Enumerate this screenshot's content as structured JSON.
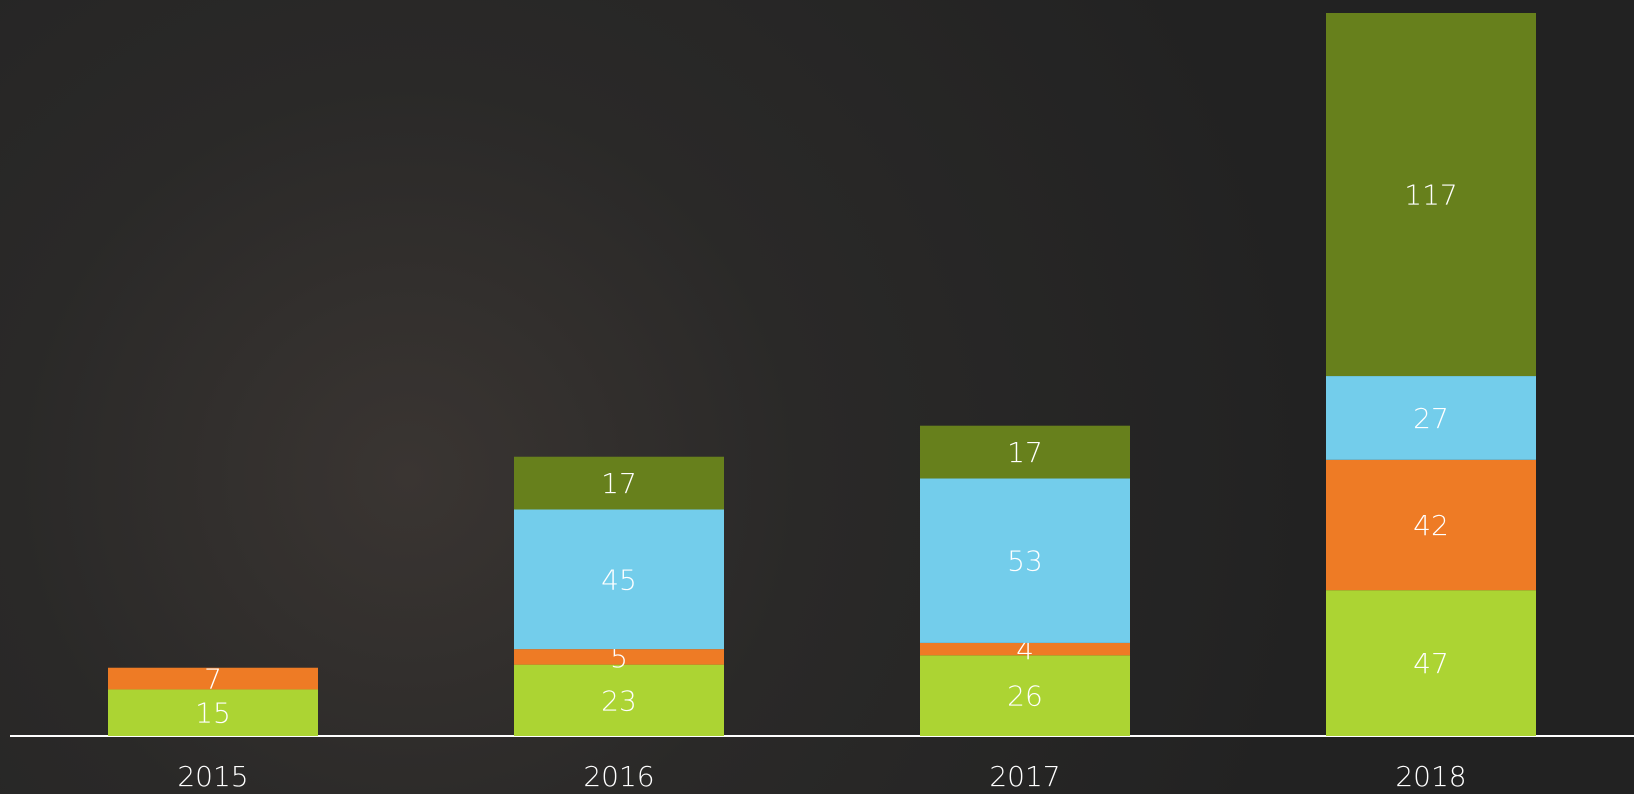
{
  "chart_data": {
    "type": "stacked_bar",
    "categories": [
      "2015",
      "2016",
      "2017",
      "2018"
    ],
    "series": [
      {
        "color": "#acd433",
        "values": [
          15,
          23,
          26,
          47
        ]
      },
      {
        "color": "#ee7b25",
        "values": [
          7,
          5,
          4,
          42
        ]
      },
      {
        "color": "#73cdeb",
        "values": [
          null,
          45,
          53,
          27
        ]
      },
      {
        "color": "#67801c",
        "values": [
          null,
          17,
          17,
          117
        ]
      }
    ],
    "ylim": [
      0,
      233
    ]
  }
}
